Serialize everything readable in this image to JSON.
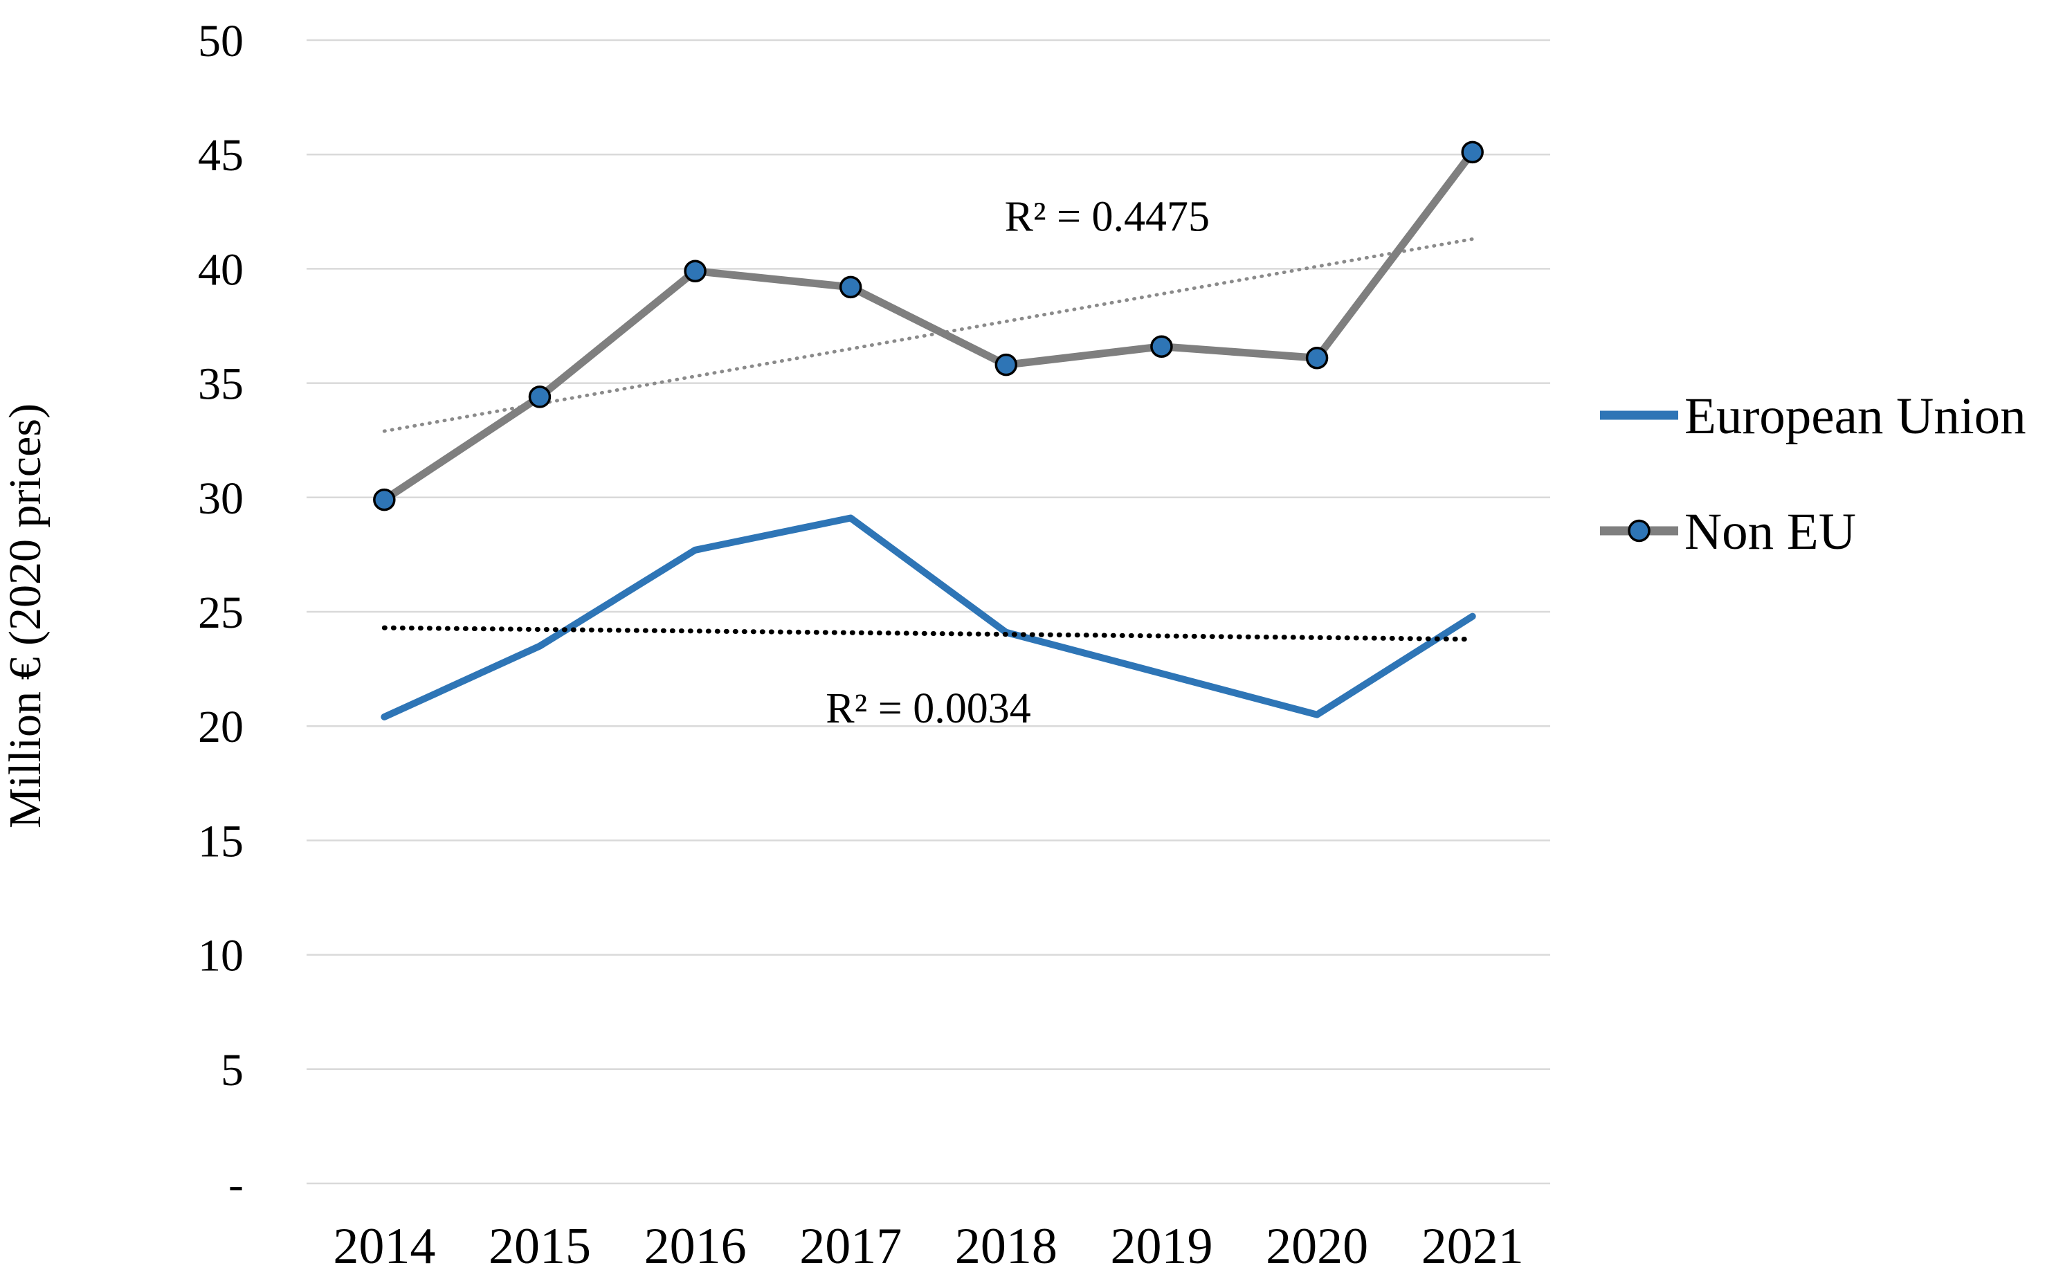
{
  "chart_data": {
    "type": "line",
    "title": "",
    "xlabel": "",
    "ylabel": "Million € (2020 prices)",
    "categories": [
      "2014",
      "2015",
      "2016",
      "2017",
      "2018",
      "2019",
      "2020",
      "2021"
    ],
    "series": [
      {
        "name": "European Union",
        "color": "#2E75B6",
        "line_width": 10,
        "marker": "none",
        "values": [
          20.4,
          23.5,
          27.7,
          29.1,
          24.1,
          22.3,
          20.5,
          24.8
        ],
        "trendline": {
          "start_value": 24.3,
          "end_value": 23.8,
          "color": "#000000",
          "style": "dotted",
          "r2_label": "R² = 0.0034",
          "label_x_index": 3.5,
          "label_value": 20.8
        }
      },
      {
        "name": "Non EU",
        "color": "#7F7F7F",
        "line_width": 11,
        "marker": "circle",
        "marker_fill": "#2E75B6",
        "marker_outline": "#000000",
        "values": [
          29.9,
          34.4,
          39.9,
          39.2,
          35.8,
          36.6,
          36.1,
          45.1
        ],
        "trendline": {
          "start_value": 32.9,
          "end_value": 41.3,
          "color": "#8A8A8A",
          "style": "dotted",
          "r2_label": "R² = 0.4475",
          "label_x_index": 4.65,
          "label_value": 42.3
        }
      }
    ],
    "ylim": [
      0,
      50
    ],
    "y_tick_step": 5,
    "y_tick_labels": [
      "50",
      "45",
      "40",
      "35",
      "30",
      "25",
      "20",
      "15",
      "10",
      "5",
      "-"
    ],
    "grid": "horizontal",
    "gridline_color": "#D9D9D9",
    "background_color": "#FFFFFF",
    "legend_position": "right"
  }
}
